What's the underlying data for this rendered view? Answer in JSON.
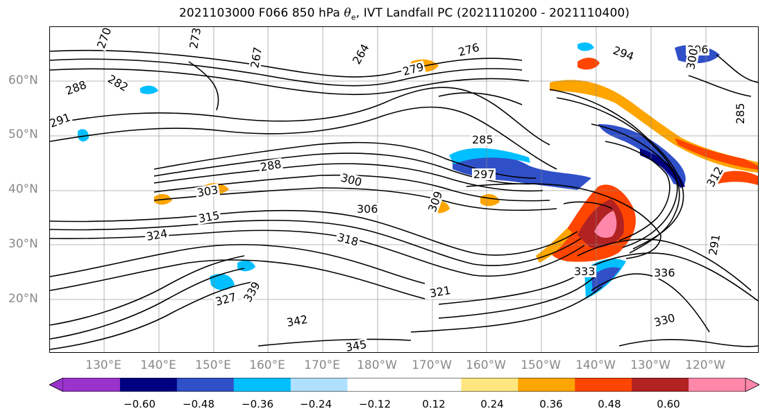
{
  "title": {
    "prefix": "2021103000 F066 850 hPa ",
    "theta": "θ",
    "sub": "e",
    "suffix": ", IVT Landfall PC (2021110200 - 2021110400)"
  },
  "axes": {
    "lat_labels": [
      "60°N",
      "50°N",
      "40°N",
      "30°N",
      "20°N"
    ],
    "lon_labels": [
      "130°E",
      "140°E",
      "150°E",
      "160°E",
      "170°E",
      "180°W",
      "170°W",
      "160°W",
      "150°W",
      "140°W",
      "130°W",
      "120°W"
    ]
  },
  "contour_labels": [
    "270",
    "273",
    "267",
    "276",
    "264",
    "279",
    "282",
    "288",
    "291",
    "294",
    "296",
    "300",
    "285",
    "288",
    "297",
    "300",
    "303",
    "306",
    "309",
    "315",
    "318",
    "324",
    "321",
    "327",
    "330",
    "333",
    "336",
    "339",
    "342",
    "345",
    "285",
    "291",
    "312"
  ],
  "colorbar": {
    "ticks": [
      "−0.60",
      "−0.48",
      "−0.36",
      "−0.24",
      "−0.12",
      "0.12",
      "0.24",
      "0.36",
      "0.48",
      "0.60"
    ],
    "colors": [
      "#9933cc",
      "#000080",
      "#3050c8",
      "#00bfff",
      "#b0e0ff",
      "#ffffff",
      "#ffe680",
      "#ffa500",
      "#ff4500",
      "#b22222",
      "#ff88aa",
      "#ff88aa"
    ]
  },
  "colors": {
    "gridline": "#888888",
    "lat_lon_label": "#888888",
    "contour": "#000000"
  }
}
